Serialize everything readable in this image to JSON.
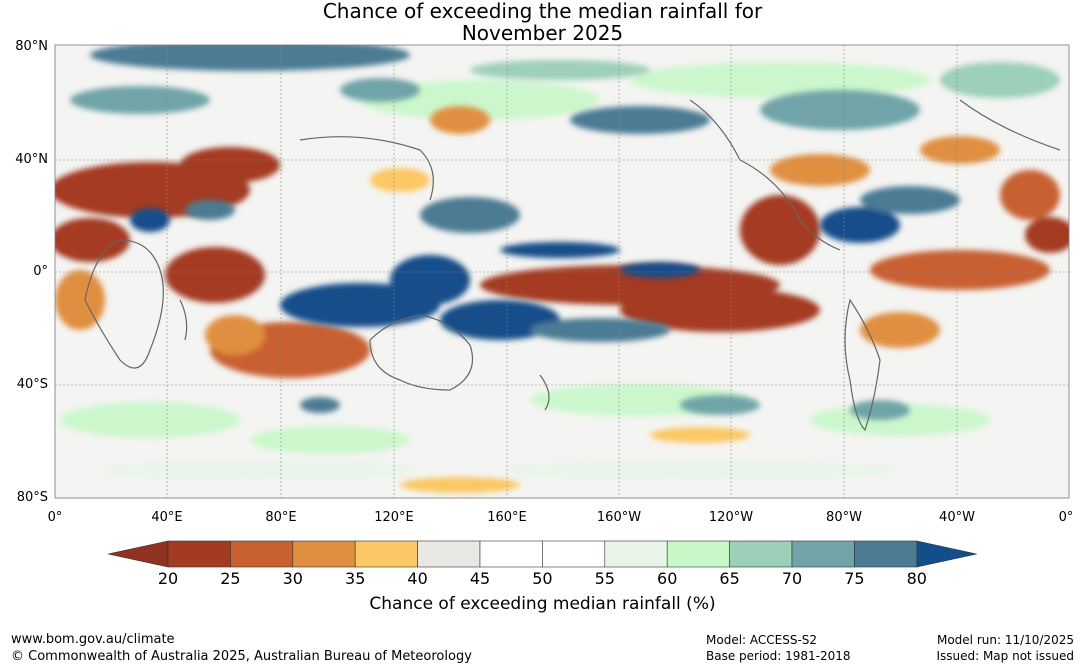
{
  "title": {
    "line1": "Chance of exceeding the median rainfall for",
    "line2": "November 2025"
  },
  "axes": {
    "lat_labels": [
      "80°N",
      "40°N",
      "0°",
      "40°S",
      "80°S"
    ],
    "lat_values": [
      80,
      40,
      0,
      -40,
      -80
    ],
    "lon_labels": [
      "0°",
      "40°E",
      "80°E",
      "120°E",
      "160°E",
      "160°W",
      "120°W",
      "80°W",
      "40°W",
      "0°"
    ],
    "lon_values": [
      0,
      40,
      80,
      120,
      160,
      200,
      240,
      280,
      320,
      360
    ]
  },
  "legend": {
    "title": "Chance of exceeding median rainfall (%)",
    "ticks": [
      "20",
      "25",
      "30",
      "35",
      "40",
      "45",
      "50",
      "55",
      "60",
      "65",
      "70",
      "75",
      "80"
    ],
    "colors": [
      "#a43a22",
      "#c86030",
      "#e08f40",
      "#fcc865",
      "#e9e8e4",
      "#ffffff",
      "#ffffff",
      "#e8f5e8",
      "#c8f8c8",
      "#9dd0b8",
      "#70a4a8",
      "#4b7c94"
    ],
    "low_color": "#8f3220",
    "high_color": "#124e8a"
  },
  "footer": {
    "website": "www.bom.gov.au/climate",
    "copyright": "© Commonwealth of Australia 2025, Australian Bureau of Meteorology",
    "model": "Model: ACCESS-S2",
    "base_period": "Base period: 1981-2018",
    "model_run": "Model run: 11/10/2025",
    "issued": "Issued: Map not issued"
  },
  "map_regions": [
    {
      "name": "pacific-dry-band",
      "level": "below-25"
    },
    {
      "name": "maritime-continent-wet",
      "level": "above-80"
    },
    {
      "name": "indian-ocean-dry",
      "level": "below-25"
    },
    {
      "name": "north-africa-dry",
      "level": "below-25"
    },
    {
      "name": "south-indian-dry",
      "level": "25-30"
    },
    {
      "name": "east-pacific-wet",
      "level": "above-80"
    },
    {
      "name": "mid-atlantic-dry",
      "level": "25-30"
    },
    {
      "name": "arctic-wet",
      "level": "70-80"
    },
    {
      "name": "north-pacific-dry",
      "level": "30-40"
    },
    {
      "name": "southern-ocean-moist",
      "level": "60-70"
    }
  ]
}
